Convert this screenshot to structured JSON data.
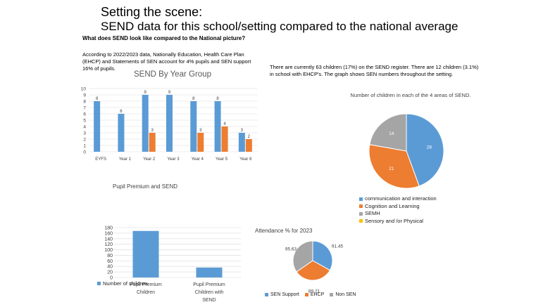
{
  "header": {
    "title": "Setting the scene:",
    "subtitle": "SEND data for this school/setting compared to the national average",
    "question": "What does SEND look like compared to the National picture?",
    "para_national": "According to 2022/2023 data, Nationally Education, Health Care Plan (EHCP) and Statements of SEN account for 4% pupils and SEN support 16% of pupils.",
    "para_school": "There are currently 63 children (17%) on the SEND register. There are 12 children (3.1%) in school with EHCP's. The graph shows SEN numbers throughout the setting."
  },
  "colors": {
    "blue": "#5b9bd5",
    "orange": "#ed7d31",
    "gray": "#a5a5a5",
    "yellow": "#ffc000"
  },
  "chart_data": [
    {
      "type": "bar",
      "title": "SEND By Year Group",
      "categories": [
        "EYFS",
        "Year 1",
        "Year 2",
        "Year 3",
        "Year 4",
        "Year 5",
        "Year 6"
      ],
      "series": [
        {
          "values": [
            8,
            6,
            9,
            9,
            8,
            8,
            3
          ],
          "color": "#5b9bd5"
        },
        {
          "values": [
            null,
            null,
            3,
            null,
            3,
            4,
            2
          ],
          "color": "#ed7d31"
        }
      ],
      "ylim": [
        0,
        10
      ],
      "yticks": [
        "0",
        "1",
        "2",
        "3",
        "4",
        "5",
        "6",
        "7",
        "8",
        "9",
        "10"
      ],
      "grid": true
    },
    {
      "type": "pie",
      "title": "Number of children in each of the 4 areas of SEND.",
      "labels": [
        "communication and interaction",
        "Cognition and Learning",
        "SEMH",
        "Sensory and /or Physical"
      ],
      "values": [
        28,
        21,
        14,
        0
      ],
      "value_labels": [
        "28",
        "21",
        "14",
        ""
      ],
      "colors": [
        "#5b9bd5",
        "#ed7d31",
        "#a5a5a5",
        "#ffc000"
      ],
      "legend": "bottom"
    },
    {
      "type": "bar",
      "title": "Pupil Premium and SEND",
      "categories": [
        "Pupil Premium Children",
        "Pupil Premium Children with SEND"
      ],
      "category_lines": [
        [
          "Pupil Premium",
          "Children"
        ],
        [
          "Pupil Premium",
          "Children with",
          "SEND"
        ]
      ],
      "series": [
        {
          "name": "Number of children",
          "values": [
            168,
            36
          ],
          "color": "#5b9bd5"
        }
      ],
      "ylim": [
        0,
        180
      ],
      "yticks": [
        "0",
        "20",
        "40",
        "60",
        "80",
        "100",
        "120",
        "140",
        "160",
        "180"
      ],
      "grid": true,
      "legend": "bottom-left"
    },
    {
      "type": "pie",
      "title": "Attendance % for 2023",
      "labels": [
        "SEN Support",
        "EHCP",
        "Non SEN"
      ],
      "values": [
        91.45,
        89.21,
        95.63
      ],
      "value_labels": [
        "91.45",
        "89.21",
        "95.63"
      ],
      "colors": [
        "#5b9bd5",
        "#ed7d31",
        "#a5a5a5"
      ],
      "legend": "bottom"
    }
  ]
}
